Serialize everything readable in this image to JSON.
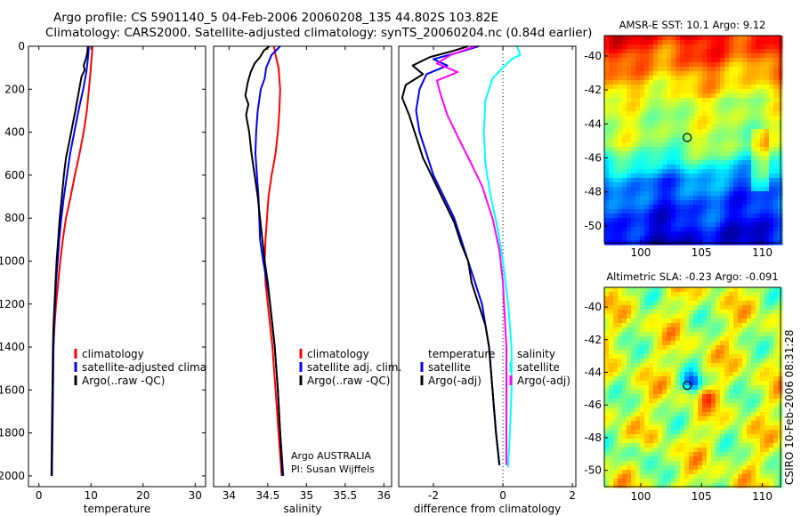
{
  "header": {
    "title_line1": "Argo profile: CS 5901140_5 04-Feb-2006 20060208_135 44.802S 103.82E",
    "title_line2": "Climatology: CARS2000. Satellite-adjusted climatology: synTS_20060204.nc (0.84d earlier)"
  },
  "side_label": "CSIRO 10-Feb-2006 08:31:28",
  "float_info": {
    "line1": "Argo AUSTRALIA",
    "line2": "PI: Susan Wijffels"
  },
  "colors": {
    "climatology": "#ff0000",
    "satellite": "#0000ff",
    "argo": "#000000",
    "salinity_satellite": "#00ffff",
    "salinity_argo": "#ff00ff"
  },
  "chart_data": [
    {
      "id": "temperature",
      "type": "line",
      "xlabel": "temperature",
      "ylabel": "",
      "xlim": [
        -2,
        32
      ],
      "ylim": [
        0,
        2050
      ],
      "y_reversed": true,
      "xticks": [
        0,
        10,
        20,
        30
      ],
      "yticks": [
        0,
        200,
        400,
        600,
        800,
        1000,
        1200,
        1400,
        1600,
        1800,
        2000
      ],
      "legend": [
        "climatology",
        "satellite-adjusted climatology",
        "Argo(..raw -QC)"
      ],
      "series": [
        {
          "name": "climatology",
          "color": "#ff0000",
          "points": [
            [
              10.3,
              0
            ],
            [
              10.1,
              60
            ],
            [
              9.9,
              120
            ],
            [
              9.6,
              200
            ],
            [
              9.2,
              300
            ],
            [
              8.6,
              400
            ],
            [
              7.8,
              500
            ],
            [
              6.9,
              600
            ],
            [
              6.1,
              700
            ],
            [
              5.2,
              800
            ],
            [
              4.6,
              900
            ],
            [
              4.1,
              1000
            ],
            [
              3.7,
              1100
            ],
            [
              3.3,
              1200
            ],
            [
              3.0,
              1300
            ],
            [
              2.8,
              1400
            ],
            [
              2.7,
              1600
            ],
            [
              2.6,
              1800
            ],
            [
              2.5,
              2000
            ]
          ]
        },
        {
          "name": "satellite-adjusted climatology",
          "color": "#0000ff",
          "points": [
            [
              9.6,
              0
            ],
            [
              9.4,
              60
            ],
            [
              9.1,
              120
            ],
            [
              8.5,
              200
            ],
            [
              7.6,
              300
            ],
            [
              6.8,
              400
            ],
            [
              6.0,
              500
            ],
            [
              5.4,
              600
            ],
            [
              4.8,
              700
            ],
            [
              4.3,
              800
            ],
            [
              3.9,
              900
            ],
            [
              3.6,
              1000
            ],
            [
              3.3,
              1100
            ],
            [
              3.1,
              1200
            ],
            [
              2.9,
              1300
            ],
            [
              2.8,
              1400
            ],
            [
              2.7,
              1600
            ],
            [
              2.6,
              1800
            ],
            [
              2.5,
              2000
            ]
          ]
        },
        {
          "name": "Argo(..raw -QC)",
          "color": "#000000",
          "points": [
            [
              9.4,
              0
            ],
            [
              9.3,
              30
            ],
            [
              9.0,
              60
            ],
            [
              8.6,
              90
            ],
            [
              8.8,
              110
            ],
            [
              8.2,
              140
            ],
            [
              7.9,
              180
            ],
            [
              7.6,
              220
            ],
            [
              7.3,
              260
            ],
            [
              7.0,
              300
            ],
            [
              6.6,
              350
            ],
            [
              6.2,
              400
            ],
            [
              5.7,
              460
            ],
            [
              5.2,
              520
            ],
            [
              4.8,
              600
            ],
            [
              4.4,
              700
            ],
            [
              4.0,
              800
            ],
            [
              3.7,
              900
            ],
            [
              3.4,
              1000
            ],
            [
              3.2,
              1100
            ],
            [
              3.0,
              1200
            ],
            [
              2.8,
              1300
            ],
            [
              2.7,
              1400
            ],
            [
              2.6,
              1600
            ],
            [
              2.5,
              1800
            ],
            [
              2.4,
              2000
            ]
          ]
        }
      ]
    },
    {
      "id": "salinity",
      "type": "line",
      "xlabel": "salinity",
      "ylabel": "",
      "xlim": [
        33.8,
        36.1
      ],
      "ylim": [
        0,
        2050
      ],
      "y_reversed": true,
      "xticks": [
        34,
        34.5,
        35,
        35.5,
        36
      ],
      "xtick_labels": [
        "34",
        "34.5",
        "35",
        "35.5",
        "36"
      ],
      "legend": [
        "climatology",
        "satellite adj. clim.",
        "Argo(..raw -QC)"
      ],
      "series": [
        {
          "name": "climatology",
          "color": "#ff0000",
          "points": [
            [
              34.58,
              0
            ],
            [
              34.6,
              40
            ],
            [
              34.64,
              100
            ],
            [
              34.66,
              200
            ],
            [
              34.65,
              300
            ],
            [
              34.63,
              400
            ],
            [
              34.6,
              500
            ],
            [
              34.55,
              600
            ],
            [
              34.51,
              700
            ],
            [
              34.49,
              800
            ],
            [
              34.47,
              900
            ],
            [
              34.46,
              1000
            ],
            [
              34.47,
              1100
            ],
            [
              34.5,
              1200
            ],
            [
              34.53,
              1300
            ],
            [
              34.56,
              1400
            ],
            [
              34.6,
              1600
            ],
            [
              34.64,
              1800
            ],
            [
              34.68,
              2000
            ]
          ]
        },
        {
          "name": "satellite adj. clim.",
          "color": "#0000ff",
          "points": [
            [
              34.66,
              0
            ],
            [
              34.55,
              40
            ],
            [
              34.48,
              100
            ],
            [
              34.46,
              150
            ],
            [
              34.41,
              200
            ],
            [
              34.37,
              300
            ],
            [
              34.35,
              400
            ],
            [
              34.34,
              500
            ],
            [
              34.36,
              600
            ],
            [
              34.38,
              700
            ],
            [
              34.39,
              800
            ],
            [
              34.4,
              900
            ],
            [
              34.44,
              1000
            ],
            [
              34.49,
              1100
            ],
            [
              34.53,
              1200
            ],
            [
              34.56,
              1300
            ],
            [
              34.59,
              1400
            ],
            [
              34.63,
              1600
            ],
            [
              34.66,
              1800
            ],
            [
              34.7,
              2000
            ]
          ]
        },
        {
          "name": "Argo(..raw -QC)",
          "color": "#000000",
          "points": [
            [
              34.52,
              0
            ],
            [
              34.45,
              20
            ],
            [
              34.4,
              50
            ],
            [
              34.33,
              80
            ],
            [
              34.28,
              120
            ],
            [
              34.24,
              170
            ],
            [
              34.21,
              230
            ],
            [
              34.25,
              270
            ],
            [
              34.22,
              320
            ],
            [
              34.26,
              400
            ],
            [
              34.29,
              500
            ],
            [
              34.33,
              600
            ],
            [
              34.37,
              700
            ],
            [
              34.4,
              800
            ],
            [
              34.43,
              900
            ],
            [
              34.46,
              1000
            ],
            [
              34.5,
              1100
            ],
            [
              34.53,
              1200
            ],
            [
              34.56,
              1300
            ],
            [
              34.59,
              1400
            ],
            [
              34.63,
              1600
            ],
            [
              34.66,
              1800
            ],
            [
              34.69,
              2000
            ]
          ]
        }
      ]
    },
    {
      "id": "difference",
      "type": "line",
      "xlabel": "difference from climatology",
      "ylabel": "",
      "xlim": [
        -3,
        2.1
      ],
      "ylim": [
        0,
        2050
      ],
      "y_reversed": true,
      "xticks": [
        -2,
        0,
        2
      ],
      "zero_line": true,
      "legend_left_title": "temperature",
      "legend_left": [
        "satellite",
        "Argo(-adj)"
      ],
      "legend_right_title": "salinity",
      "legend_right": [
        "satellite",
        "Argo(-adj)"
      ],
      "series": [
        {
          "name": "temperature satellite",
          "color": "#0000ff",
          "points": [
            [
              -0.7,
              0
            ],
            [
              -1.3,
              30
            ],
            [
              -2.0,
              60
            ],
            [
              -1.6,
              90
            ],
            [
              -2.2,
              130
            ],
            [
              -2.4,
              200
            ],
            [
              -2.5,
              300
            ],
            [
              -2.4,
              400
            ],
            [
              -2.2,
              500
            ],
            [
              -2.0,
              600
            ],
            [
              -1.7,
              700
            ],
            [
              -1.4,
              800
            ],
            [
              -1.2,
              900
            ],
            [
              -1.0,
              1000
            ],
            [
              -0.8,
              1100
            ],
            [
              -0.6,
              1200
            ],
            [
              -0.5,
              1300
            ],
            [
              -0.4,
              1400
            ],
            [
              -0.3,
              1600
            ],
            [
              -0.2,
              1800
            ],
            [
              -0.1,
              1950
            ]
          ]
        },
        {
          "name": "temperature Argo(-adj)",
          "color": "#000000",
          "points": [
            [
              -1.0,
              0
            ],
            [
              -1.5,
              25
            ],
            [
              -2.1,
              50
            ],
            [
              -2.6,
              90
            ],
            [
              -2.3,
              130
            ],
            [
              -2.8,
              180
            ],
            [
              -2.9,
              240
            ],
            [
              -2.7,
              320
            ],
            [
              -2.5,
              420
            ],
            [
              -2.3,
              520
            ],
            [
              -2.0,
              620
            ],
            [
              -1.7,
              720
            ],
            [
              -1.4,
              820
            ],
            [
              -1.2,
              920
            ],
            [
              -1.0,
              1000
            ],
            [
              -0.9,
              1100
            ],
            [
              -0.7,
              1200
            ],
            [
              -0.5,
              1300
            ],
            [
              -0.4,
              1400
            ],
            [
              -0.3,
              1600
            ],
            [
              -0.2,
              1800
            ],
            [
              -0.1,
              1950
            ]
          ]
        },
        {
          "name": "salinity satellite",
          "color": "#00ffff",
          "points": [
            [
              0.4,
              0
            ],
            [
              0.5,
              40
            ],
            [
              0.25,
              60
            ],
            [
              0.0,
              100
            ],
            [
              -0.3,
              150
            ],
            [
              -0.5,
              250
            ],
            [
              -0.55,
              400
            ],
            [
              -0.5,
              550
            ],
            [
              -0.35,
              700
            ],
            [
              -0.15,
              850
            ],
            [
              0.0,
              1000
            ],
            [
              0.15,
              1200
            ],
            [
              0.25,
              1400
            ],
            [
              0.25,
              1600
            ],
            [
              0.2,
              1800
            ],
            [
              0.15,
              1960
            ]
          ]
        },
        {
          "name": "salinity Argo(-adj)",
          "color": "#ff00ff",
          "points": [
            [
              -0.8,
              0
            ],
            [
              -1.5,
              40
            ],
            [
              -1.9,
              80
            ],
            [
              -1.3,
              120
            ],
            [
              -1.9,
              160
            ],
            [
              -1.8,
              220
            ],
            [
              -1.6,
              320
            ],
            [
              -1.3,
              420
            ],
            [
              -0.9,
              550
            ],
            [
              -0.6,
              650
            ],
            [
              -0.3,
              800
            ],
            [
              -0.1,
              950
            ],
            [
              0.0,
              1100
            ],
            [
              0.05,
              1250
            ],
            [
              0.1,
              1400
            ],
            [
              0.1,
              1600
            ],
            [
              0.1,
              1800
            ],
            [
              0.1,
              1950
            ]
          ]
        }
      ]
    },
    {
      "id": "amsre-sst",
      "type": "heatmap",
      "title": "AMSR-E SST: 10.1 Argo: 9.12",
      "xlim": [
        97,
        111.5
      ],
      "ylim": [
        -51,
        -38.8
      ],
      "xticks": [
        100,
        105,
        110
      ],
      "yticks": [
        -40,
        -42,
        -44,
        -46,
        -48,
        -50
      ],
      "marker": [
        103.82,
        -44.8
      ]
    },
    {
      "id": "altimetric-sla",
      "type": "heatmap",
      "title": "Altimetric SLA: -0.23 Argo: -0.091",
      "xlim": [
        97,
        111.5
      ],
      "ylim": [
        -51,
        -38.8
      ],
      "xticks": [
        100,
        105,
        110
      ],
      "yticks": [
        -40,
        -42,
        -44,
        -46,
        -48,
        -50
      ],
      "marker": [
        103.82,
        -44.8
      ]
    }
  ]
}
